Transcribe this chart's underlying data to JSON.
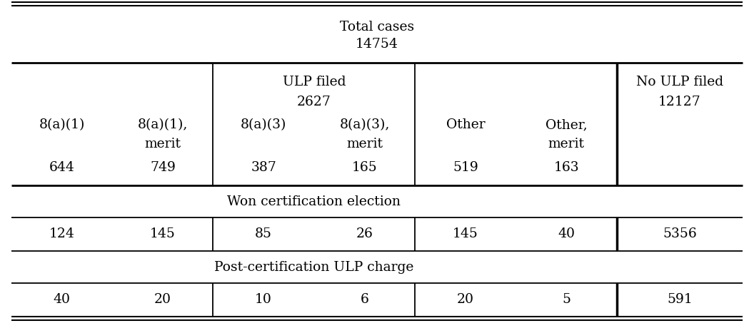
{
  "title_line1": "Total cases",
  "title_line2": "14754",
  "ulp_filed_label": "ULP filed",
  "ulp_filed_value": "2627",
  "no_ulp_label": "No ULP filed",
  "no_ulp_value": "12127",
  "col_h1": [
    "8(a)(1)",
    "8(a)(1),",
    "8(a)(3)",
    "8(a)(3),",
    "Other",
    "Other,"
  ],
  "col_h2": [
    "",
    "merit",
    "",
    "merit",
    "",
    "merit"
  ],
  "col_values": [
    "644",
    "749",
    "387",
    "165",
    "519",
    "163"
  ],
  "won_cert_label": "Won certification election",
  "won_cert_values": [
    "124",
    "145",
    "85",
    "26",
    "145",
    "40"
  ],
  "won_cert_no_ulp": "5356",
  "post_cert_label": "Post-certification ULP charge",
  "post_cert_values": [
    "40",
    "20",
    "10",
    "6",
    "20",
    "5"
  ],
  "post_cert_no_ulp": "591",
  "bg_color": "#ffffff",
  "line_color": "#000000",
  "L": 0.015,
  "R": 0.985,
  "no_ulp_sep": 0.818,
  "figsize": [
    10.56,
    4.67
  ],
  "dpi": 100,
  "fs": 13.5
}
